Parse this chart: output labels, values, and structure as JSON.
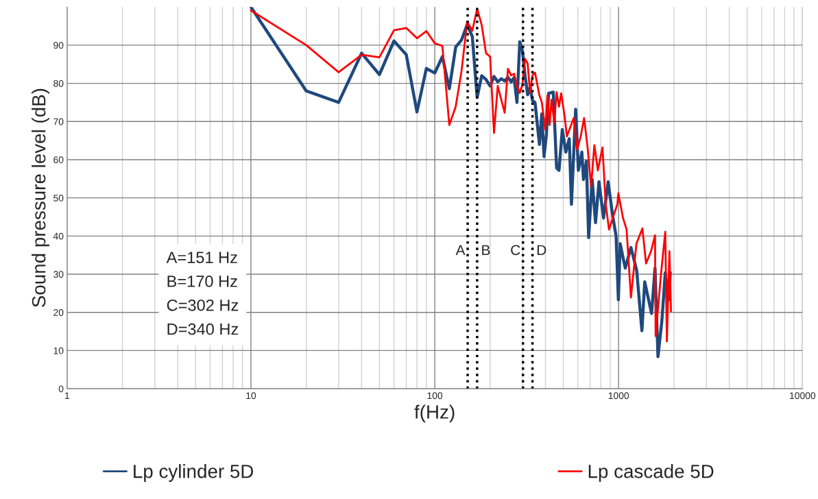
{
  "chart_data": {
    "type": "line",
    "xlabel": "f(Hz)",
    "ylabel": "Sound pressure level (dB)",
    "log": "x",
    "xlim": [
      1,
      10000
    ],
    "xticks": [
      1,
      10,
      100,
      1000,
      10000
    ],
    "ylim": [
      0,
      100
    ],
    "yticks": [
      0,
      10,
      20,
      30,
      40,
      50,
      60,
      70,
      80,
      90
    ],
    "grid": true,
    "legend": "bottom",
    "line_style": "solid",
    "marker": "none",
    "series": [
      {
        "name": "Lp cylinder 5D",
        "color": "#1f497d",
        "x": [
          10,
          20,
          30,
          40,
          50,
          60,
          70,
          80,
          90,
          100,
          110,
          120,
          130,
          140,
          150,
          160,
          170,
          180,
          190,
          200,
          210,
          220,
          230,
          240,
          250,
          260,
          270,
          280,
          290,
          300,
          310,
          320,
          330,
          340,
          351,
          371,
          382,
          393,
          405,
          416,
          441,
          460,
          474,
          494,
          516,
          539,
          554,
          584,
          604,
          631,
          644,
          668,
          687,
          718,
          749,
          782,
          828,
          877,
          929,
          969,
          997,
          1020,
          1050,
          1087,
          1167,
          1254,
          1339,
          1387,
          1511,
          1578,
          1637,
          1718,
          1794,
          1872,
          1910
        ],
        "values": [
          100,
          78,
          75,
          87.9,
          82.3,
          91.1,
          87.5,
          72.5,
          83.9,
          82.7,
          87,
          78.6,
          89.5,
          91.4,
          95.4,
          92.3,
          76.3,
          82,
          81,
          79.3,
          81.8,
          80.4,
          81.2,
          80.6,
          81.6,
          80.4,
          81.5,
          75,
          90.9,
          88.5,
          82,
          77,
          79,
          75.5,
          75,
          64,
          72,
          60.8,
          66.7,
          77.4,
          77.7,
          57.8,
          57.2,
          67.9,
          62,
          65.5,
          48.3,
          73.2,
          57.2,
          62,
          54.8,
          59.6,
          39.6,
          54.8,
          43.5,
          54.2,
          44.7,
          54.2,
          45.2,
          40,
          23.3,
          38,
          35,
          31.6,
          37,
          31,
          15.2,
          28,
          19.7,
          31.6,
          8.4,
          17.6,
          30.4,
          23.3,
          30.4
        ]
      },
      {
        "name": "Lp cascade 5D",
        "color": "#ff0000",
        "x": [
          10,
          20,
          30,
          40,
          50,
          60,
          70,
          80,
          90,
          100,
          110,
          120,
          130,
          140,
          150,
          160,
          170,
          180,
          190,
          200,
          210,
          220,
          240,
          250,
          260,
          270,
          280,
          290,
          300,
          310,
          320,
          330,
          340,
          351,
          371,
          382,
          399,
          410,
          422,
          431,
          447,
          460,
          474,
          487,
          508,
          523,
          570,
          595,
          622,
          649,
          678,
          708,
          738,
          771,
          817,
          851,
          887,
          929,
          984,
          997,
          1057,
          1105,
          1167,
          1250,
          1347,
          1410,
          1500,
          1578,
          1590,
          1700,
          1794,
          1830,
          1890,
          1927
        ],
        "values": [
          99.1,
          90,
          82.9,
          87.5,
          86.8,
          93.9,
          94.5,
          91.8,
          93.7,
          90.5,
          89.8,
          69.1,
          73.9,
          83.4,
          96.2,
          93.8,
          99.5,
          95.3,
          87.9,
          87,
          67,
          79.3,
          72.3,
          83.8,
          82.1,
          82.5,
          79.3,
          77.5,
          79.8,
          86.4,
          85.2,
          77.5,
          82.1,
          82.8,
          76.8,
          75.1,
          67.9,
          76.8,
          69.1,
          75.7,
          69.7,
          77.7,
          73.9,
          77.4,
          71.5,
          66.1,
          70.9,
          62.6,
          66.1,
          70.9,
          63.2,
          53,
          63.8,
          57.2,
          63.2,
          48.3,
          41.7,
          44.7,
          48.3,
          51.2,
          44.7,
          41.7,
          23.9,
          38,
          42,
          32.8,
          36,
          40.2,
          13.8,
          30,
          41.1,
          12.4,
          36,
          20.3
        ]
      }
    ],
    "ref_lines": [
      {
        "axis": "x",
        "value": 151,
        "label": "A",
        "color": "#000000",
        "line_style": "dotted"
      },
      {
        "axis": "x",
        "value": 170,
        "label": "B",
        "color": "#000000",
        "line_style": "dotted"
      },
      {
        "axis": "x",
        "value": 302,
        "label": "C",
        "color": "#000000",
        "line_style": "dotted"
      },
      {
        "axis": "x",
        "value": 340,
        "label": "D",
        "color": "#000000",
        "line_style": "dotted"
      }
    ],
    "annotations": [
      "A=151 Hz",
      "B=170 Hz",
      "C=302 Hz",
      "D=340 Hz"
    ]
  }
}
